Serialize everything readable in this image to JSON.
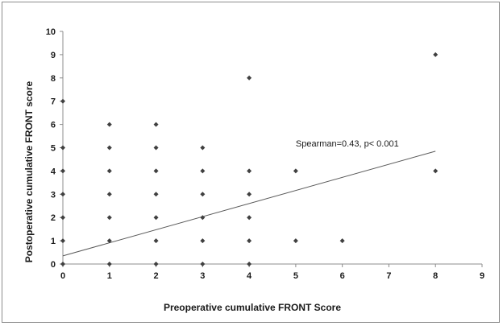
{
  "chart_data": {
    "type": "scatter",
    "title": "",
    "xlabel": "Preoperative cumulative FRONT Score",
    "ylabel": "Postoperative cumulative FRONT score",
    "xlim": [
      0,
      9
    ],
    "ylim": [
      0,
      10
    ],
    "x_ticks": [
      "0",
      "1",
      "2",
      "3",
      "4",
      "5",
      "6",
      "7",
      "8",
      "9"
    ],
    "y_ticks": [
      "0",
      "1",
      "2",
      "3",
      "4",
      "5",
      "6",
      "7",
      "8",
      "9",
      "10"
    ],
    "grid": false,
    "legend": "none",
    "points": [
      {
        "x": 0,
        "y": 0
      },
      {
        "x": 0,
        "y": 1
      },
      {
        "x": 0,
        "y": 2
      },
      {
        "x": 0,
        "y": 3
      },
      {
        "x": 0,
        "y": 4
      },
      {
        "x": 0,
        "y": 5
      },
      {
        "x": 0,
        "y": 7
      },
      {
        "x": 1,
        "y": 0
      },
      {
        "x": 1,
        "y": 1
      },
      {
        "x": 1,
        "y": 2
      },
      {
        "x": 1,
        "y": 3
      },
      {
        "x": 1,
        "y": 4
      },
      {
        "x": 1,
        "y": 5
      },
      {
        "x": 1,
        "y": 6
      },
      {
        "x": 2,
        "y": 0
      },
      {
        "x": 2,
        "y": 1
      },
      {
        "x": 2,
        "y": 2
      },
      {
        "x": 2,
        "y": 3
      },
      {
        "x": 2,
        "y": 4
      },
      {
        "x": 2,
        "y": 5
      },
      {
        "x": 2,
        "y": 6
      },
      {
        "x": 3,
        "y": 0
      },
      {
        "x": 3,
        "y": 1
      },
      {
        "x": 3,
        "y": 2
      },
      {
        "x": 3,
        "y": 3
      },
      {
        "x": 3,
        "y": 4
      },
      {
        "x": 3,
        "y": 5
      },
      {
        "x": 4,
        "y": 0
      },
      {
        "x": 4,
        "y": 1
      },
      {
        "x": 4,
        "y": 2
      },
      {
        "x": 4,
        "y": 3
      },
      {
        "x": 4,
        "y": 4
      },
      {
        "x": 4,
        "y": 8
      },
      {
        "x": 5,
        "y": 1
      },
      {
        "x": 5,
        "y": 4
      },
      {
        "x": 6,
        "y": 1
      },
      {
        "x": 8,
        "y": 4
      },
      {
        "x": 8,
        "y": 9
      }
    ],
    "trendline": {
      "x": [
        0,
        8
      ],
      "y": [
        0.35,
        4.85
      ]
    },
    "annotation": "Spearman=0.43, p< 0.001",
    "colors": {
      "points": "#404040",
      "axis": "#8c8c8c",
      "trendline": "#595959",
      "text": "#1a1a1a"
    }
  }
}
